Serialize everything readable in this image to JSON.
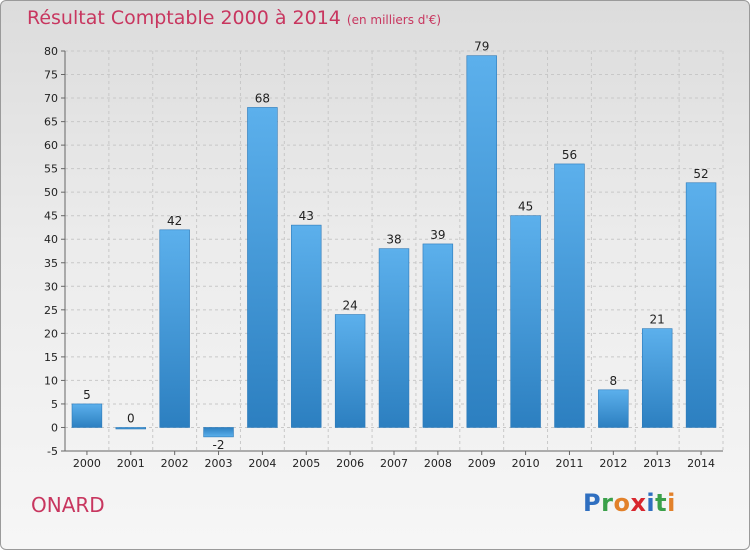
{
  "title": "Résultat Comptable 2000 à 2014",
  "subtitle": "(en milliers d'€)",
  "commune": "ONARD",
  "logo": {
    "letters": [
      "P",
      "r",
      "o",
      "x",
      "i",
      "t",
      "i"
    ],
    "colors": [
      "#2f6fc0",
      "#3aa04a",
      "#e2812a",
      "#d8262e",
      "#2f6fc0",
      "#3aa04a",
      "#e2812a"
    ]
  },
  "chart_data": {
    "type": "bar",
    "categories": [
      "2000",
      "2001",
      "2002",
      "2003",
      "2004",
      "2005",
      "2006",
      "2007",
      "2008",
      "2009",
      "2010",
      "2011",
      "2012",
      "2013",
      "2014"
    ],
    "values": [
      5,
      0,
      42,
      -2,
      68,
      43,
      24,
      38,
      39,
      79,
      45,
      56,
      8,
      21,
      52
    ],
    "ylim": [
      -5,
      80
    ],
    "yticks": [
      -5,
      0,
      5,
      10,
      15,
      20,
      25,
      30,
      35,
      40,
      45,
      50,
      55,
      60,
      65,
      70,
      75,
      80
    ],
    "grid": true,
    "bar_color": "#4aa0e0"
  }
}
